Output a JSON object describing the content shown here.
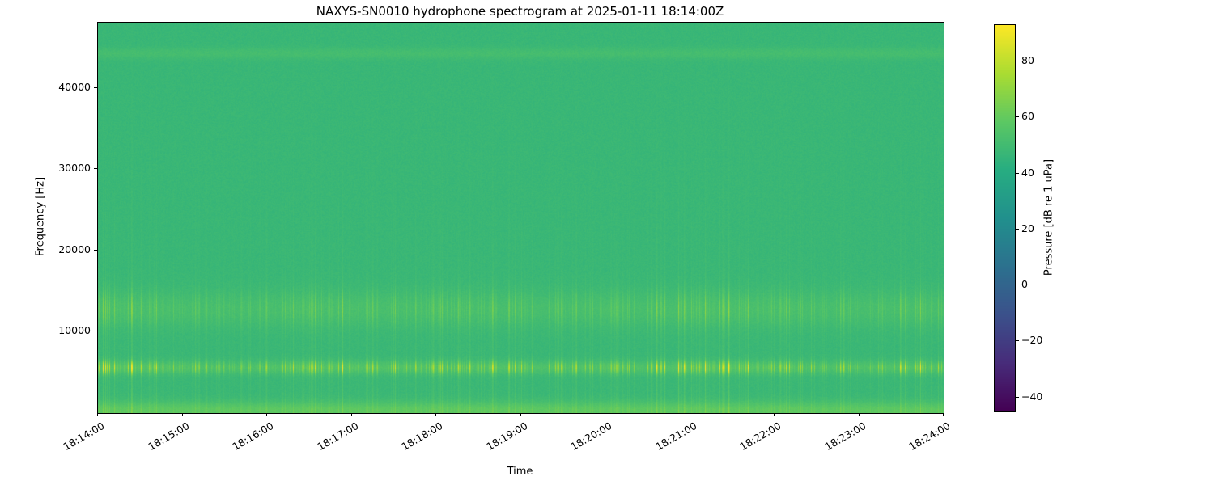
{
  "figure": {
    "background": "#ffffff"
  },
  "chart_data": {
    "type": "heatmap",
    "title": "NAXYS-SN0010 hydrophone spectrogram at 2025-01-11 18:14:00Z",
    "xlabel": "Time",
    "ylabel": "Frequency [Hz]",
    "x_ticks": [
      "18:14:00",
      "18:15:00",
      "18:16:00",
      "18:17:00",
      "18:18:00",
      "18:19:00",
      "18:20:00",
      "18:21:00",
      "18:22:00",
      "18:23:00",
      "18:24:00"
    ],
    "y_ticks": [
      10000,
      20000,
      30000,
      40000
    ],
    "ylim_hz": [
      0,
      48000
    ],
    "colormap": "viridis",
    "grid": false,
    "colorbar": {
      "label": "Pressure [dB re 1 uPa]",
      "ticks": [
        80,
        60,
        40,
        20,
        0,
        -20,
        -40
      ],
      "vmin": -45,
      "vmax": 93
    },
    "background_level_db": 47.3,
    "features": {
      "horizontal_bands": [
        {
          "name": "low-frequency-noise-band",
          "center_hz": 300,
          "half_width_hz": 1100,
          "boost_db": 11,
          "transient_boost_db": 0
        },
        {
          "name": "tonal-band-5600hz",
          "center_hz": 5600,
          "half_width_hz": 800,
          "boost_db": 5,
          "transient_boost_db": 30
        },
        {
          "name": "tonal-band-12800hz",
          "center_hz": 12800,
          "half_width_hz": 2200,
          "boost_db": 4,
          "transient_boost_db": 11
        },
        {
          "name": "tonal-band-44200hz",
          "center_hz": 44200,
          "half_width_hz": 700,
          "boost_db": 4,
          "transient_boost_db": 0
        }
      ],
      "vertical_transients": {
        "description": "Broadband impulsive clicks shown as narrow vertical striations, strongest below ~16 kHz and brightest (yellow) near 5-6 kHz",
        "max_boost_db": 7,
        "falloff_hz": 15000
      }
    }
  }
}
